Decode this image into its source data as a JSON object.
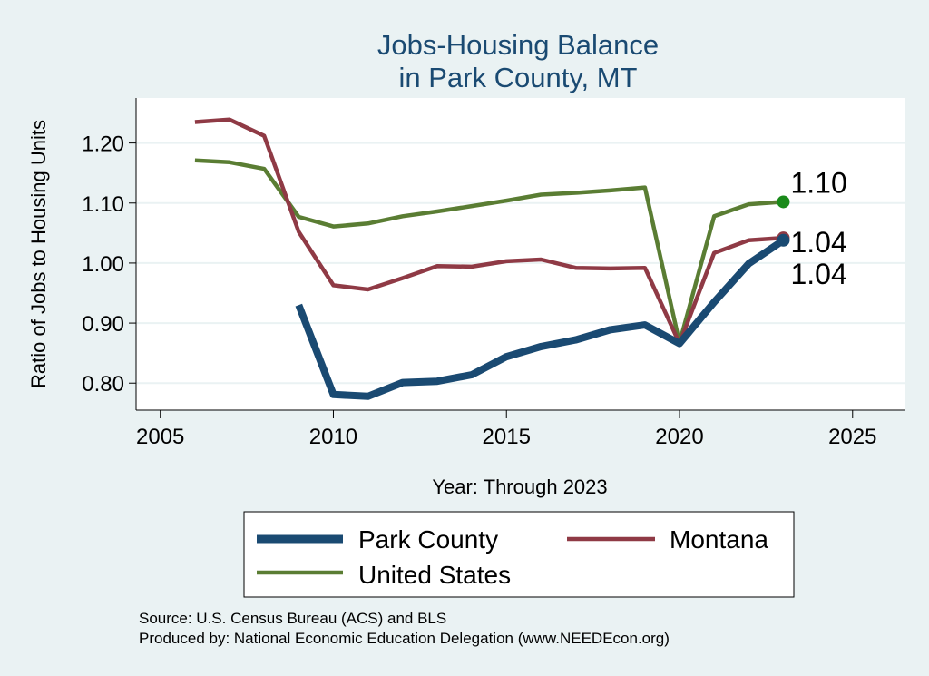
{
  "chart_data": {
    "type": "line",
    "title": [
      "Jobs-Housing Balance",
      "in Park County, MT"
    ],
    "xlabel": "Year: Through 2023",
    "ylabel": "Ratio of Jobs to Housing Units",
    "xlim": [
      2004.3,
      2026.5
    ],
    "ylim": [
      0.755,
      1.275
    ],
    "xticks": [
      2005,
      2010,
      2015,
      2020,
      2025
    ],
    "yticks": [
      0.8,
      0.9,
      1.0,
      1.1,
      1.2
    ],
    "ytick_labels": [
      "0.80",
      "0.90",
      "1.00",
      "1.10",
      "1.20"
    ],
    "grid": true,
    "legend_position": "bottom",
    "series": [
      {
        "name": "Park County",
        "color": "#1a4a72",
        "x": [
          2009,
          2010,
          2011,
          2012,
          2013,
          2014,
          2015,
          2016,
          2017,
          2018,
          2019,
          2020,
          2021,
          2022,
          2023
        ],
        "values": [
          0.93,
          0.781,
          0.778,
          0.801,
          0.803,
          0.814,
          0.844,
          0.861,
          0.872,
          0.889,
          0.897,
          0.866,
          0.935,
          0.999,
          1.038
        ],
        "end_label": "1.04"
      },
      {
        "name": "Montana",
        "color": "#8f3a45",
        "x": [
          2006,
          2007,
          2008,
          2009,
          2010,
          2011,
          2012,
          2013,
          2014,
          2015,
          2016,
          2017,
          2018,
          2019,
          2020,
          2021,
          2022,
          2023
        ],
        "values": [
          1.235,
          1.239,
          1.212,
          1.052,
          0.963,
          0.956,
          0.975,
          0.995,
          0.994,
          1.003,
          1.006,
          0.992,
          0.991,
          0.992,
          0.866,
          1.017,
          1.038,
          1.042
        ],
        "end_label": "1.04"
      },
      {
        "name": "United States",
        "color": "#5a7d33",
        "x": [
          2006,
          2007,
          2008,
          2009,
          2010,
          2011,
          2012,
          2013,
          2014,
          2015,
          2016,
          2017,
          2018,
          2019,
          2020,
          2021,
          2022,
          2023
        ],
        "values": [
          1.171,
          1.168,
          1.157,
          1.077,
          1.061,
          1.066,
          1.078,
          1.086,
          1.095,
          1.104,
          1.114,
          1.117,
          1.121,
          1.126,
          0.867,
          1.078,
          1.098,
          1.102
        ],
        "end_label": "1.10"
      }
    ],
    "marker_colors": {
      "United States": "#1a8a1a",
      "Montana": "#8f3a45",
      "Park County": "#1a4a72"
    }
  },
  "source": {
    "line1": "Source: U.S. Census Bureau (ACS) and BLS",
    "line2": "Produced by: National Economic Education Delegation (www.NEEDEcon.org)"
  }
}
